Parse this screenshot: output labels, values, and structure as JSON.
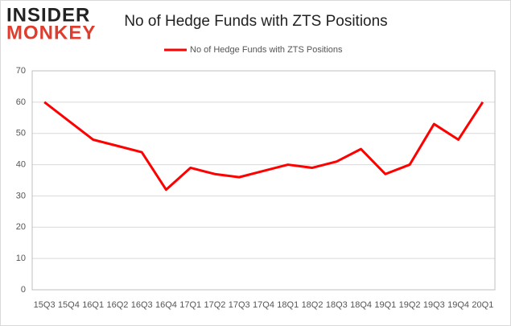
{
  "logo": {
    "line1": "INSIDER",
    "line2": "MONKEY"
  },
  "chart_data": {
    "type": "line",
    "title": "No of Hedge Funds with ZTS Positions",
    "categories": [
      "15Q3",
      "15Q4",
      "16Q1",
      "16Q2",
      "16Q3",
      "16Q4",
      "17Q1",
      "17Q2",
      "17Q3",
      "17Q4",
      "18Q1",
      "18Q2",
      "18Q3",
      "18Q4",
      "19Q1",
      "19Q2",
      "19Q3",
      "19Q4",
      "20Q1"
    ],
    "series": [
      {
        "name": "No of Hedge Funds with ZTS Positions",
        "color": "#ff0000",
        "values": [
          60,
          54,
          48,
          46,
          44,
          32,
          39,
          37,
          36,
          38,
          40,
          39,
          41,
          45,
          37,
          40,
          53,
          48,
          60
        ]
      }
    ],
    "ylim": [
      0,
      70
    ],
    "yticks": [
      0,
      10,
      20,
      30,
      40,
      50,
      60,
      70
    ],
    "grid": true,
    "legend": "top"
  }
}
